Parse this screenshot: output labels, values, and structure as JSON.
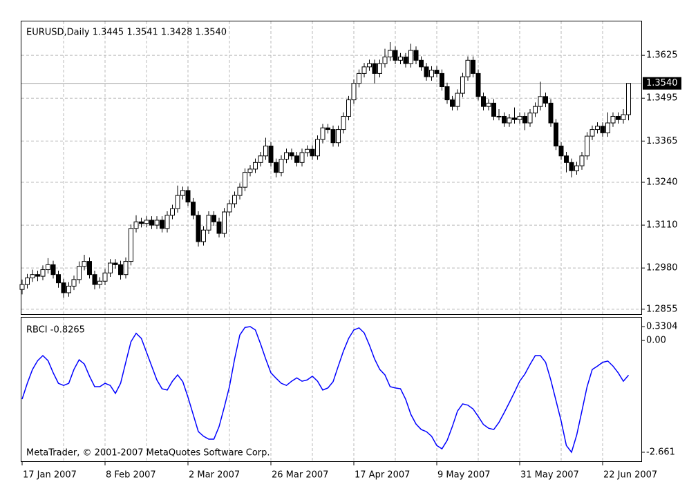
{
  "chart_data": [
    {
      "type": "candlestick",
      "title": "EURUSD,Daily  1.3445 1.3541 1.3428 1.3540",
      "categories": [
        "17 Jan 2007",
        null,
        null,
        null,
        null,
        null,
        null,
        null,
        null,
        null,
        null,
        null,
        null,
        null,
        null,
        null,
        "8 Feb 2007",
        null,
        null,
        null,
        null,
        null,
        null,
        null,
        null,
        null,
        null,
        null,
        null,
        null,
        null,
        null,
        "2 Mar 2007",
        null,
        null,
        null,
        null,
        null,
        null,
        null,
        null,
        null,
        null,
        null,
        null,
        null,
        null,
        null,
        "26 Mar 2007",
        null,
        null,
        null,
        null,
        null,
        null,
        null,
        null,
        null,
        null,
        null,
        null,
        null,
        null,
        null,
        "17 Apr 2007",
        null,
        null,
        null,
        null,
        null,
        null,
        null,
        null,
        null,
        null,
        null,
        null,
        null,
        null,
        null,
        "9 May 2007",
        null,
        null,
        null,
        null,
        null,
        null,
        null,
        null,
        null,
        null,
        null,
        null,
        null,
        null,
        null,
        "31 May 2007",
        null,
        null,
        null,
        null,
        null,
        null,
        null,
        null,
        null,
        null,
        null,
        null,
        null,
        null,
        null,
        "22 Jun 2007",
        null,
        null,
        null,
        null,
        null
      ],
      "open": [
        1.2915,
        1.293,
        1.295,
        1.296,
        1.2955,
        1.2975,
        1.299,
        1.296,
        1.2935,
        1.2905,
        1.2925,
        1.2945,
        1.2985,
        1.3,
        1.296,
        1.293,
        1.294,
        1.2965,
        1.2995,
        1.299,
        1.296,
        1.3,
        1.31,
        1.312,
        1.3115,
        1.3125,
        1.311,
        1.3125,
        1.31,
        1.314,
        1.316,
        1.32,
        1.3215,
        1.318,
        1.314,
        1.306,
        1.3095,
        1.314,
        1.312,
        1.3085,
        1.315,
        1.3175,
        1.32,
        1.3225,
        1.327,
        1.328,
        1.33,
        1.332,
        1.335,
        1.33,
        1.327,
        1.331,
        1.333,
        1.332,
        1.33,
        1.333,
        1.334,
        1.332,
        1.337,
        1.3405,
        1.34,
        1.336,
        1.34,
        1.344,
        1.349,
        1.354,
        1.357,
        1.359,
        1.36,
        1.357,
        1.36,
        1.362,
        1.364,
        1.361,
        1.362,
        1.36,
        1.364,
        1.361,
        1.359,
        1.356,
        1.358,
        1.357,
        1.353,
        1.349,
        1.347,
        1.351,
        1.356,
        1.361,
        1.357,
        1.35,
        1.347,
        1.348,
        1.344,
        1.344,
        1.342,
        1.3435,
        1.343,
        1.344,
        1.342,
        1.345,
        1.347,
        1.35,
        1.348,
        1.342,
        1.335,
        1.332,
        1.33,
        1.3275,
        1.329,
        1.332,
        1.338,
        1.34,
        1.341,
        1.339,
        1.342,
        1.344,
        1.343,
        1.3445
      ],
      "high": [
        1.2945,
        1.2962,
        1.2975,
        1.2972,
        1.2988,
        1.301,
        1.3002,
        1.2972,
        1.2947,
        1.2937,
        1.2957,
        1.3,
        1.302,
        1.3012,
        1.2972,
        1.2952,
        1.2977,
        1.3007,
        1.3007,
        1.3002,
        1.3012,
        1.3112,
        1.314,
        1.3132,
        1.3137,
        1.3137,
        1.3137,
        1.3137,
        1.3152,
        1.3172,
        1.323,
        1.3227,
        1.3227,
        1.3192,
        1.3152,
        1.3107,
        1.3152,
        1.3152,
        1.3132,
        1.3162,
        1.3187,
        1.3212,
        1.3237,
        1.3282,
        1.3292,
        1.3312,
        1.3332,
        1.3375,
        1.3362,
        1.3312,
        1.3322,
        1.3342,
        1.3342,
        1.3332,
        1.3342,
        1.3352,
        1.3352,
        1.3382,
        1.3417,
        1.3417,
        1.3412,
        1.3412,
        1.3452,
        1.3502,
        1.3552,
        1.3582,
        1.3602,
        1.3612,
        1.3612,
        1.3612,
        1.3645,
        1.3665,
        1.3652,
        1.3632,
        1.3632,
        1.366,
        1.3652,
        1.3622,
        1.3602,
        1.3592,
        1.3592,
        1.3582,
        1.3542,
        1.3502,
        1.3522,
        1.3572,
        1.3622,
        1.3622,
        1.3582,
        1.3512,
        1.3492,
        1.3492,
        1.3462,
        1.3452,
        1.3447,
        1.3467,
        1.3452,
        1.3452,
        1.3462,
        1.3482,
        1.3545,
        1.3512,
        1.3492,
        1.3432,
        1.3362,
        1.3332,
        1.3312,
        1.3302,
        1.3332,
        1.3392,
        1.3412,
        1.3422,
        1.3422,
        1.3452,
        1.3452,
        1.3452,
        1.3462,
        1.3541
      ],
      "low": [
        1.29,
        1.2918,
        1.2938,
        1.294,
        1.2943,
        1.2963,
        1.2948,
        1.292,
        1.289,
        1.2893,
        1.2913,
        1.2933,
        1.2973,
        1.2948,
        1.2915,
        1.2918,
        1.2928,
        1.2953,
        1.2978,
        1.2945,
        1.2948,
        1.2988,
        1.3088,
        1.3103,
        1.3103,
        1.3098,
        1.3098,
        1.3088,
        1.3088,
        1.3128,
        1.3148,
        1.3188,
        1.3168,
        1.3128,
        1.3045,
        1.3048,
        1.3083,
        1.3108,
        1.3073,
        1.3073,
        1.3138,
        1.3163,
        1.3188,
        1.3213,
        1.3258,
        1.3268,
        1.3288,
        1.3308,
        1.3288,
        1.3255,
        1.3258,
        1.3298,
        1.3308,
        1.3288,
        1.3288,
        1.3318,
        1.3308,
        1.3308,
        1.3358,
        1.3388,
        1.3348,
        1.3348,
        1.3388,
        1.3428,
        1.3478,
        1.3528,
        1.3558,
        1.3578,
        1.354,
        1.3558,
        1.3588,
        1.3608,
        1.3598,
        1.3598,
        1.3588,
        1.3588,
        1.3598,
        1.3578,
        1.3548,
        1.3548,
        1.3558,
        1.3518,
        1.3478,
        1.3458,
        1.3458,
        1.3498,
        1.3548,
        1.3558,
        1.3488,
        1.3458,
        1.3458,
        1.3428,
        1.3428,
        1.3408,
        1.3408,
        1.3418,
        1.3418,
        1.3398,
        1.3408,
        1.3438,
        1.3458,
        1.3468,
        1.3408,
        1.3338,
        1.3308,
        1.327,
        1.3255,
        1.3263,
        1.3278,
        1.3308,
        1.3368,
        1.3388,
        1.3378,
        1.3378,
        1.3408,
        1.3418,
        1.3418,
        1.3428
      ],
      "close": [
        1.293,
        1.295,
        1.296,
        1.2955,
        1.2975,
        1.299,
        1.296,
        1.2935,
        1.2905,
        1.2925,
        1.2945,
        1.2985,
        1.3,
        1.296,
        1.293,
        1.294,
        1.2965,
        1.2995,
        1.299,
        1.296,
        1.3,
        1.31,
        1.312,
        1.3115,
        1.3125,
        1.311,
        1.3125,
        1.31,
        1.314,
        1.316,
        1.32,
        1.3215,
        1.318,
        1.314,
        1.306,
        1.3095,
        1.314,
        1.312,
        1.3085,
        1.315,
        1.3175,
        1.32,
        1.3225,
        1.327,
        1.328,
        1.33,
        1.332,
        1.335,
        1.33,
        1.327,
        1.331,
        1.333,
        1.332,
        1.33,
        1.333,
        1.334,
        1.332,
        1.337,
        1.3405,
        1.34,
        1.336,
        1.34,
        1.344,
        1.349,
        1.354,
        1.357,
        1.359,
        1.36,
        1.357,
        1.36,
        1.362,
        1.364,
        1.361,
        1.362,
        1.36,
        1.364,
        1.361,
        1.359,
        1.356,
        1.358,
        1.357,
        1.353,
        1.349,
        1.347,
        1.351,
        1.356,
        1.361,
        1.357,
        1.35,
        1.347,
        1.348,
        1.344,
        1.344,
        1.342,
        1.3435,
        1.343,
        1.344,
        1.342,
        1.345,
        1.347,
        1.35,
        1.348,
        1.342,
        1.335,
        1.332,
        1.33,
        1.3275,
        1.329,
        1.332,
        1.338,
        1.34,
        1.341,
        1.339,
        1.342,
        1.344,
        1.343,
        1.3445,
        1.354
      ],
      "ylim": [
        1.284,
        1.373
      ],
      "yticks": [
        1.3625,
        1.3495,
        1.3365,
        {
          "value": 1.324,
          "label": "1.3240"
        },
        {
          "value": 1.311,
          "label": "1.3110"
        },
        {
          "value": 1.298,
          "label": "1.2980"
        },
        1.2855
      ],
      "current_price": {
        "value": 1.354,
        "label": "1.3540"
      },
      "up_color": "#ffffff",
      "down_color": "#000000",
      "grid": true
    },
    {
      "type": "line",
      "title": "RBCI -0.8265",
      "color": "#0000ff",
      "values": [
        -1.395,
        -1.02,
        -0.69,
        -0.48,
        -0.36,
        -0.48,
        -0.77,
        -1.02,
        -1.07,
        -1.02,
        -0.69,
        -0.46,
        -0.56,
        -0.85,
        -1.1,
        -1.1,
        -1.02,
        -1.07,
        -1.26,
        -1.02,
        -0.52,
        -0.03,
        0.17,
        0.05,
        -0.28,
        -0.61,
        -0.94,
        -1.15,
        -1.18,
        -0.97,
        -0.82,
        -0.98,
        -1.35,
        -1.76,
        -2.17,
        -2.28,
        -2.35,
        -2.35,
        -2.05,
        -1.59,
        -1.1,
        -0.44,
        0.13,
        0.31,
        0.3304,
        0.25,
        -0.08,
        -0.44,
        -0.77,
        -0.9,
        -1.02,
        -1.07,
        -0.97,
        -0.89,
        -0.97,
        -0.94,
        -0.85,
        -0.97,
        -1.18,
        -1.13,
        -0.98,
        -0.61,
        -0.25,
        0.05,
        0.25,
        0.3,
        0.18,
        -0.11,
        -0.44,
        -0.69,
        -0.82,
        -1.1,
        -1.13,
        -1.15,
        -1.4,
        -1.76,
        -1.99,
        -2.12,
        -2.17,
        -2.28,
        -2.5,
        -2.58,
        -2.38,
        -2.05,
        -1.68,
        -1.51,
        -1.54,
        -1.63,
        -1.81,
        -2.0,
        -2.09,
        -2.12,
        -1.95,
        -1.72,
        -1.48,
        -1.23,
        -0.97,
        -0.8,
        -0.57,
        -0.36,
        -0.36,
        -0.52,
        -0.94,
        -1.43,
        -1.92,
        -2.5,
        -2.661,
        -2.25,
        -1.68,
        -1.1,
        -0.69,
        -0.61,
        -0.52,
        -0.49,
        -0.61,
        -0.77,
        -0.97,
        -0.8265
      ],
      "ylim": [
        -2.875,
        0.511
      ],
      "yticks": [
        0.3304,
        {
          "value": 0,
          "label": "0.00"
        },
        -2.661
      ],
      "annotation": "MetaTrader, © 2001-2007 MetaQuotes Software Corp.",
      "grid": true
    }
  ]
}
